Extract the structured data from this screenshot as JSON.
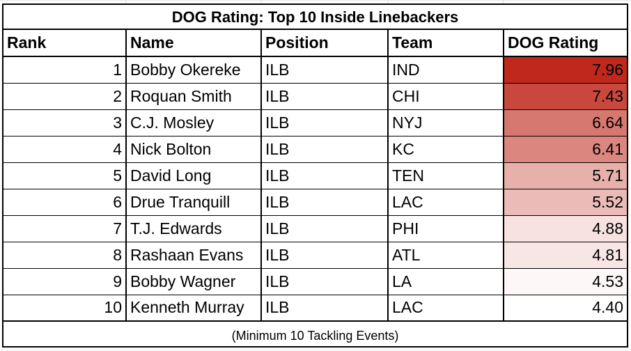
{
  "chart_data": {
    "type": "table",
    "title": "DOG Rating: Top 10 Inside Linebackers",
    "columns": [
      "Rank",
      "Name",
      "Position",
      "Team",
      "DOG Rating"
    ],
    "rows": [
      {
        "rank": "1",
        "name": "Bobby Okereke",
        "position": "ILB",
        "team": "IND",
        "rating": "7.96",
        "value": 7.96
      },
      {
        "rank": "2",
        "name": "Roquan Smith",
        "position": "ILB",
        "team": "CHI",
        "rating": "7.43",
        "value": 7.43
      },
      {
        "rank": "3",
        "name": "C.J. Mosley",
        "position": "ILB",
        "team": "NYJ",
        "rating": "6.64",
        "value": 6.64
      },
      {
        "rank": "4",
        "name": "Nick Bolton",
        "position": "ILB",
        "team": "KC",
        "rating": "6.41",
        "value": 6.41
      },
      {
        "rank": "5",
        "name": "David Long",
        "position": "ILB",
        "team": "TEN",
        "rating": "5.71",
        "value": 5.71
      },
      {
        "rank": "6",
        "name": "Drue Tranquill",
        "position": "ILB",
        "team": "LAC",
        "rating": "5.52",
        "value": 5.52
      },
      {
        "rank": "7",
        "name": "T.J. Edwards",
        "position": "ILB",
        "team": "PHI",
        "rating": "4.88",
        "value": 4.88
      },
      {
        "rank": "8",
        "name": "Rashaan Evans",
        "position": "ILB",
        "team": "ATL",
        "rating": "4.81",
        "value": 4.81
      },
      {
        "rank": "9",
        "name": "Bobby Wagner",
        "position": "ILB",
        "team": "LA",
        "rating": "4.53",
        "value": 4.53
      },
      {
        "rank": "10",
        "name": "Kenneth Murray",
        "position": "ILB",
        "team": "LAC",
        "rating": "4.40",
        "value": 4.4
      }
    ],
    "footnote": "(Minimum 10 Tackling Events)",
    "heatmap": {
      "column": "DOG Rating",
      "low_color": "#ffffff",
      "high_color": "#c0281c"
    }
  }
}
